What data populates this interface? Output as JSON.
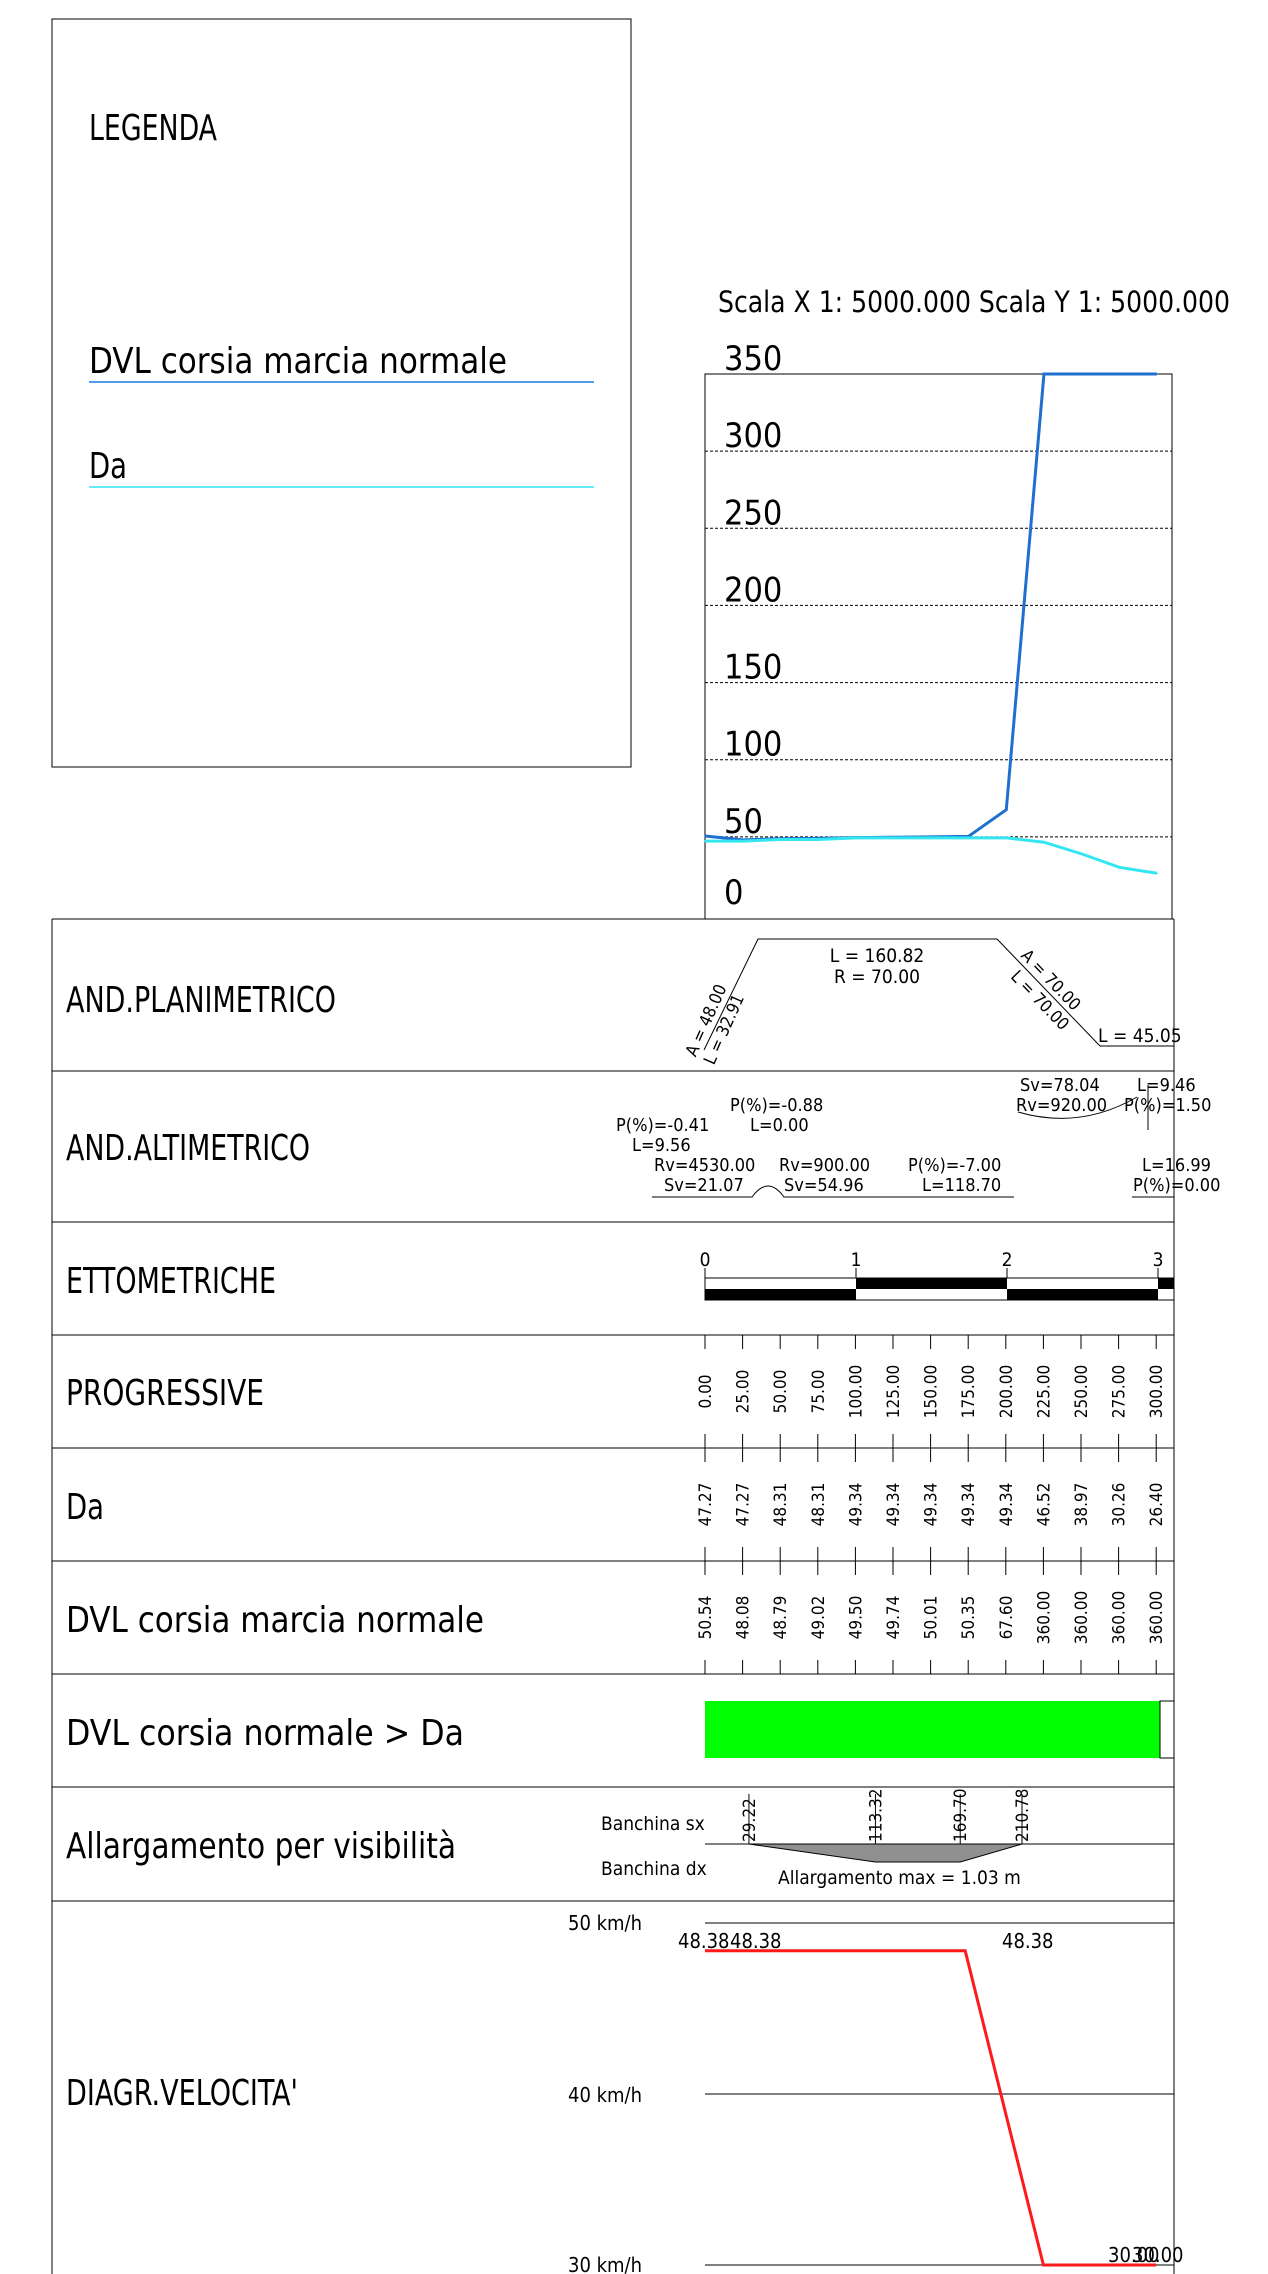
{
  "legend": {
    "title": "LEGENDA",
    "items": [
      {
        "label": "DVL  corsia  marcia  normale",
        "color": "#1f7ae0"
      },
      {
        "label": "Da",
        "color": "#33e6f0"
      }
    ]
  },
  "scale_label": "Scala  X  1:  5000.000   Scala  Y  1:  5000.000",
  "chart_data": {
    "type": "line",
    "y_ticks": [
      "350",
      "300",
      "250",
      "200",
      "150",
      "100",
      "50",
      "0"
    ],
    "ylim": [
      0,
      350
    ],
    "x_domain": [
      0,
      310
    ],
    "series": [
      {
        "name": "DVL  corsia  marcia  normale",
        "color": "#1f6fcf",
        "x": [
          0,
          25,
          50,
          75,
          100,
          125,
          150,
          175,
          200,
          225,
          250,
          275,
          300
        ],
        "values": [
          50.54,
          48.08,
          48.79,
          49.02,
          49.5,
          49.74,
          50.01,
          50.35,
          67.6,
          360.0,
          360.0,
          360.0,
          360.0
        ]
      },
      {
        "name": "Da",
        "color": "#33e6f0",
        "x": [
          0,
          25,
          50,
          75,
          100,
          125,
          150,
          175,
          200,
          225,
          250,
          275,
          300
        ],
        "values": [
          47.27,
          47.27,
          48.31,
          48.31,
          49.34,
          49.34,
          49.34,
          49.34,
          49.34,
          46.52,
          38.97,
          30.26,
          26.4
        ]
      }
    ]
  },
  "rows": {
    "planimetrico": "AND.PLANIMETRICO",
    "altimetrico": "AND.ALTIMETRICO",
    "ettometriche": "ETTOMETRICHE",
    "progressive": "PROGRESSIVE",
    "da": "Da",
    "dvl": "DVL  corsia  marcia  normale",
    "dvl_da": "DVL  corsia  normale  >  Da",
    "allargamento": "Allargamento  per  visibilità",
    "velocita": "DIAGR.VELOCITA'"
  },
  "planimetrico": {
    "clothoid1_a": "A  =  48.00",
    "clothoid1_l": "L  =  32.91",
    "arc_l": "L  =  160.82",
    "arc_r": "R  =  70.00",
    "clothoid2_a": "A  =  70.00",
    "clothoid2_l": "L  =  70.00",
    "straight_l": "L  =  45.05"
  },
  "altimetrico": {
    "p1": "P(%)=-0.41",
    "l1": "L=9.56",
    "rv1": "Rv=4530.00",
    "sv1": "Sv=21.07",
    "p2": "P(%)=-0.88",
    "l2": "L=0.00",
    "rv2": "Rv=900.00",
    "sv2": "Sv=54.96",
    "p3": "P(%)=-7.00",
    "l3": "L=118.70",
    "sv3": "Sv=78.04",
    "rv3": "Rv=920.00",
    "l4": "L=9.46",
    "p4": "P(%)=1.50",
    "l5": "L=16.99",
    "p5": "P(%)=0.00"
  },
  "ettometriche": [
    "0",
    "1",
    "2",
    "3"
  ],
  "progressive": [
    "0.00",
    "25.00",
    "50.00",
    "75.00",
    "100.00",
    "125.00",
    "150.00",
    "175.00",
    "200.00",
    "225.00",
    "250.00",
    "275.00",
    "300.00"
  ],
  "da_values": [
    "47.27",
    "47.27",
    "48.31",
    "48.31",
    "49.34",
    "49.34",
    "49.34",
    "49.34",
    "49.34",
    "46.52",
    "38.97",
    "30.26",
    "26.40"
  ],
  "dvl_values": [
    "50.54",
    "48.08",
    "48.79",
    "49.02",
    "49.50",
    "49.74",
    "50.01",
    "50.35",
    "67.60",
    "360.00",
    "360.00",
    "360.00",
    "360.00"
  ],
  "dvl_da_color": "#00ff00",
  "allargamento": {
    "sx_label": "Banchina  sx",
    "dx_label": "Banchina  dx",
    "marks": [
      "29.22",
      "113.32",
      "169.70",
      "210.78"
    ],
    "max_label": "Allargamento  max  =  1.03  m"
  },
  "velocita": {
    "axis_labels": [
      "50  km/h",
      "40  km/h",
      "30  km/h"
    ],
    "color": "#ff1a1a",
    "points_x": [
      0,
      14.5,
      173,
      225,
      300
    ],
    "points_v": [
      48.38,
      48.38,
      48.38,
      30.0,
      30.0
    ],
    "labels": [
      "48.38",
      "48.38",
      "48.38",
      "30.00",
      "30.00"
    ]
  }
}
